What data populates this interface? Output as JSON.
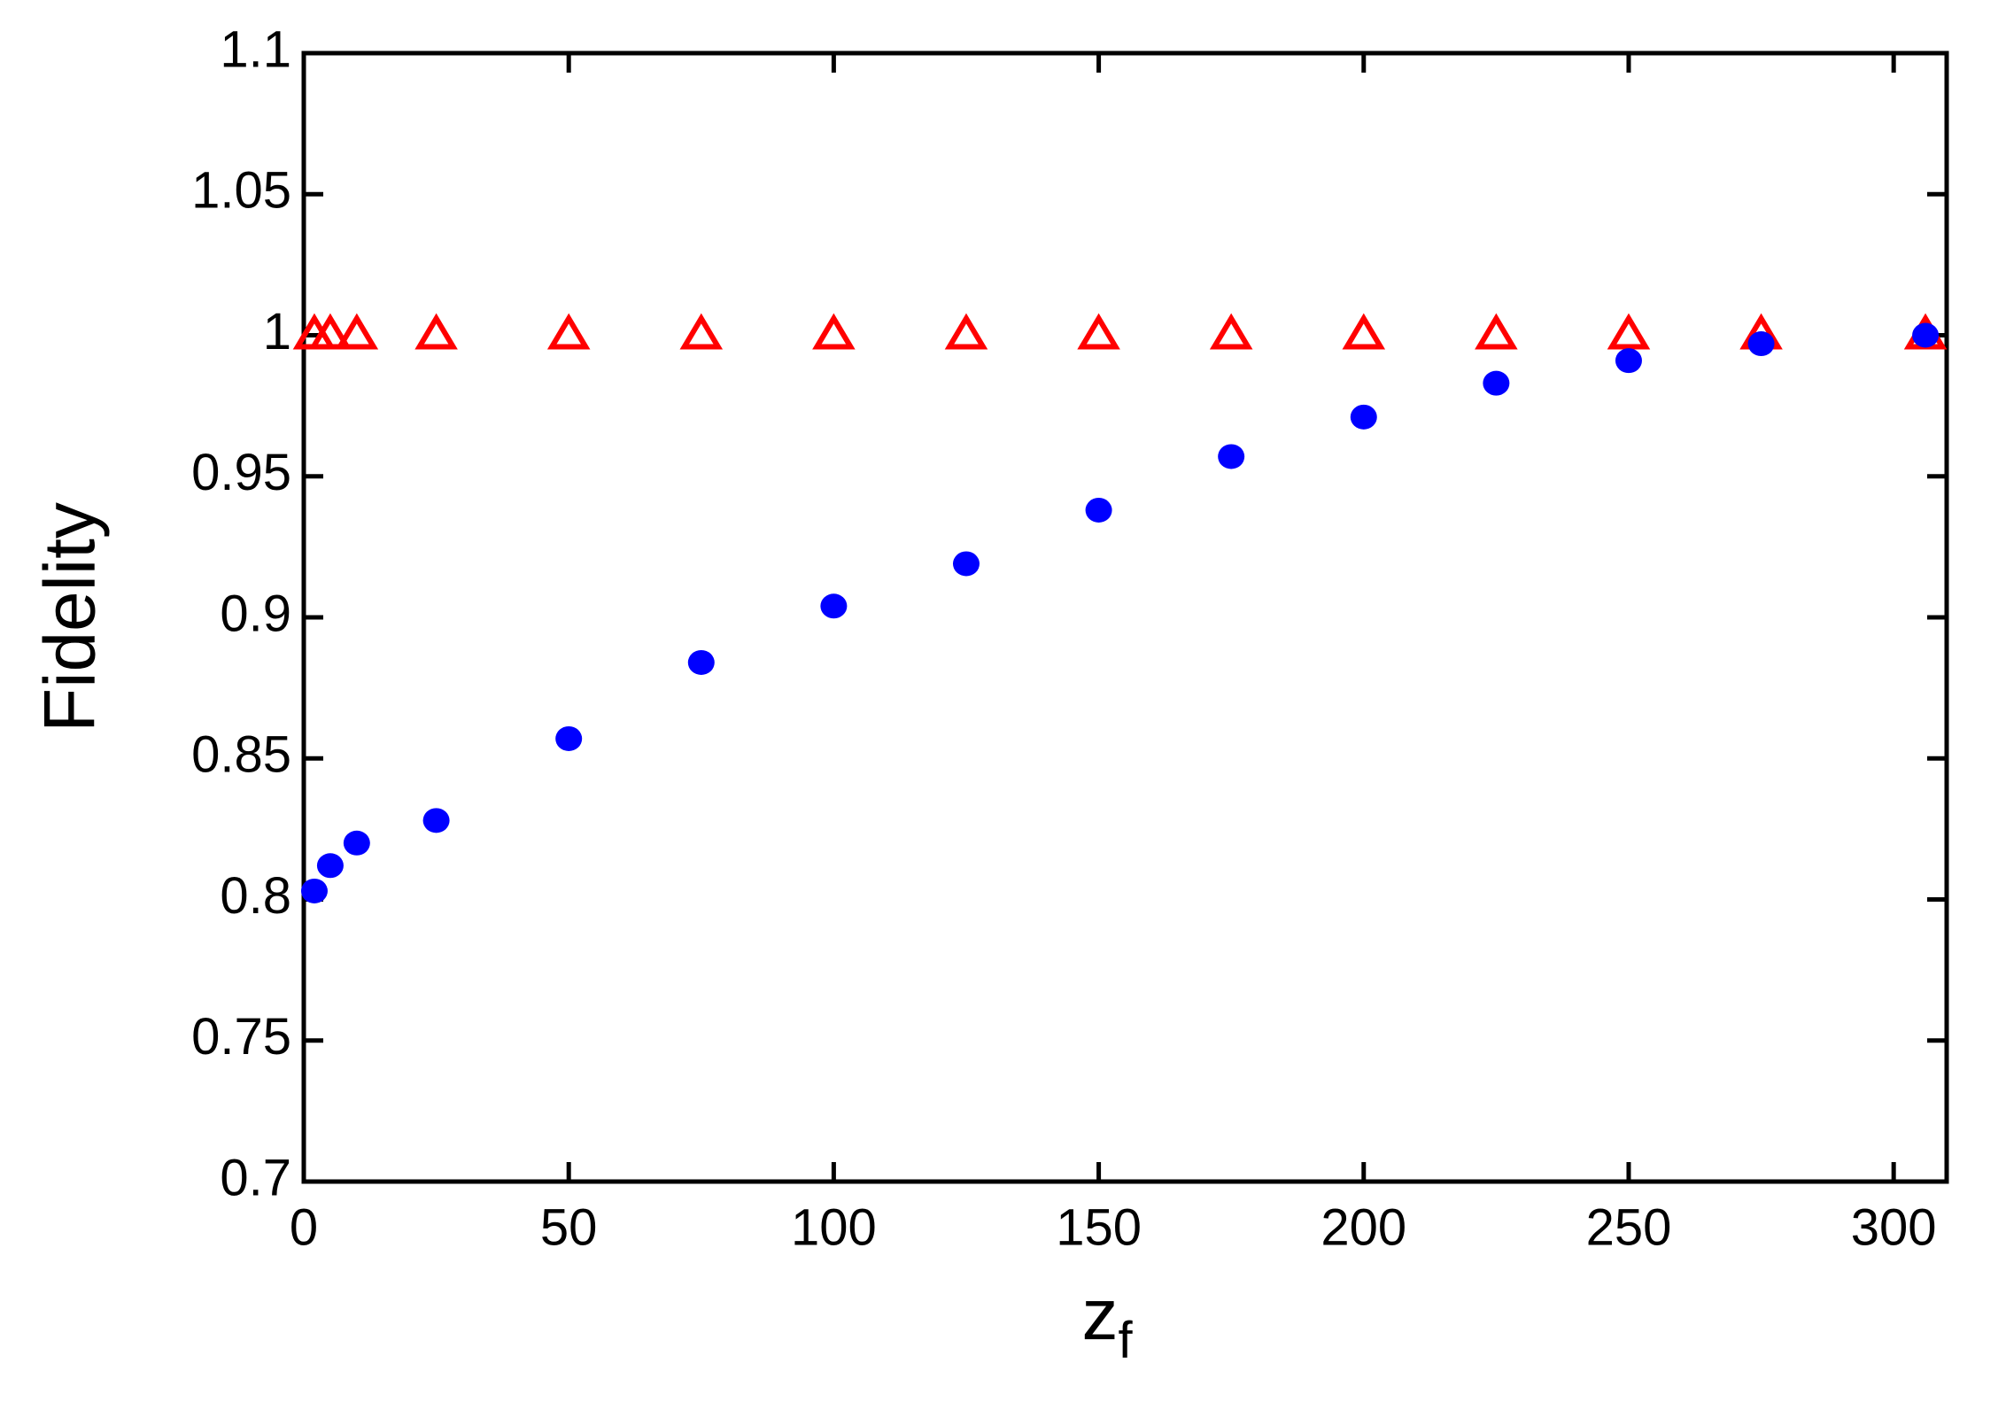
{
  "chart_data": {
    "type": "scatter",
    "xlabel": "z",
    "xlabel_subscript": "f",
    "ylabel": "Fidelity",
    "xlim": [
      0,
      310
    ],
    "ylim": [
      0.7,
      1.1
    ],
    "xticks": [
      0,
      50,
      100,
      150,
      200,
      250,
      300
    ],
    "yticks": [
      0.7,
      0.75,
      0.8,
      0.85,
      0.9,
      0.95,
      1,
      1.05,
      1.1
    ],
    "x": [
      2,
      5,
      10,
      25,
      50,
      75,
      100,
      125,
      150,
      175,
      200,
      225,
      250,
      275,
      306
    ],
    "series": [
      {
        "color": "#ff0000",
        "marker": "triangle",
        "values": [
          1,
          1,
          1,
          1,
          1,
          1,
          1,
          1,
          1,
          1,
          1,
          1,
          1,
          1,
          1
        ]
      },
      {
        "color": "#0000ff",
        "marker": "circle",
        "values": [
          0.803,
          0.812,
          0.82,
          0.828,
          0.857,
          0.884,
          0.904,
          0.919,
          0.938,
          0.957,
          0.971,
          0.983,
          0.991,
          0.997,
          1.0
        ]
      }
    ]
  }
}
